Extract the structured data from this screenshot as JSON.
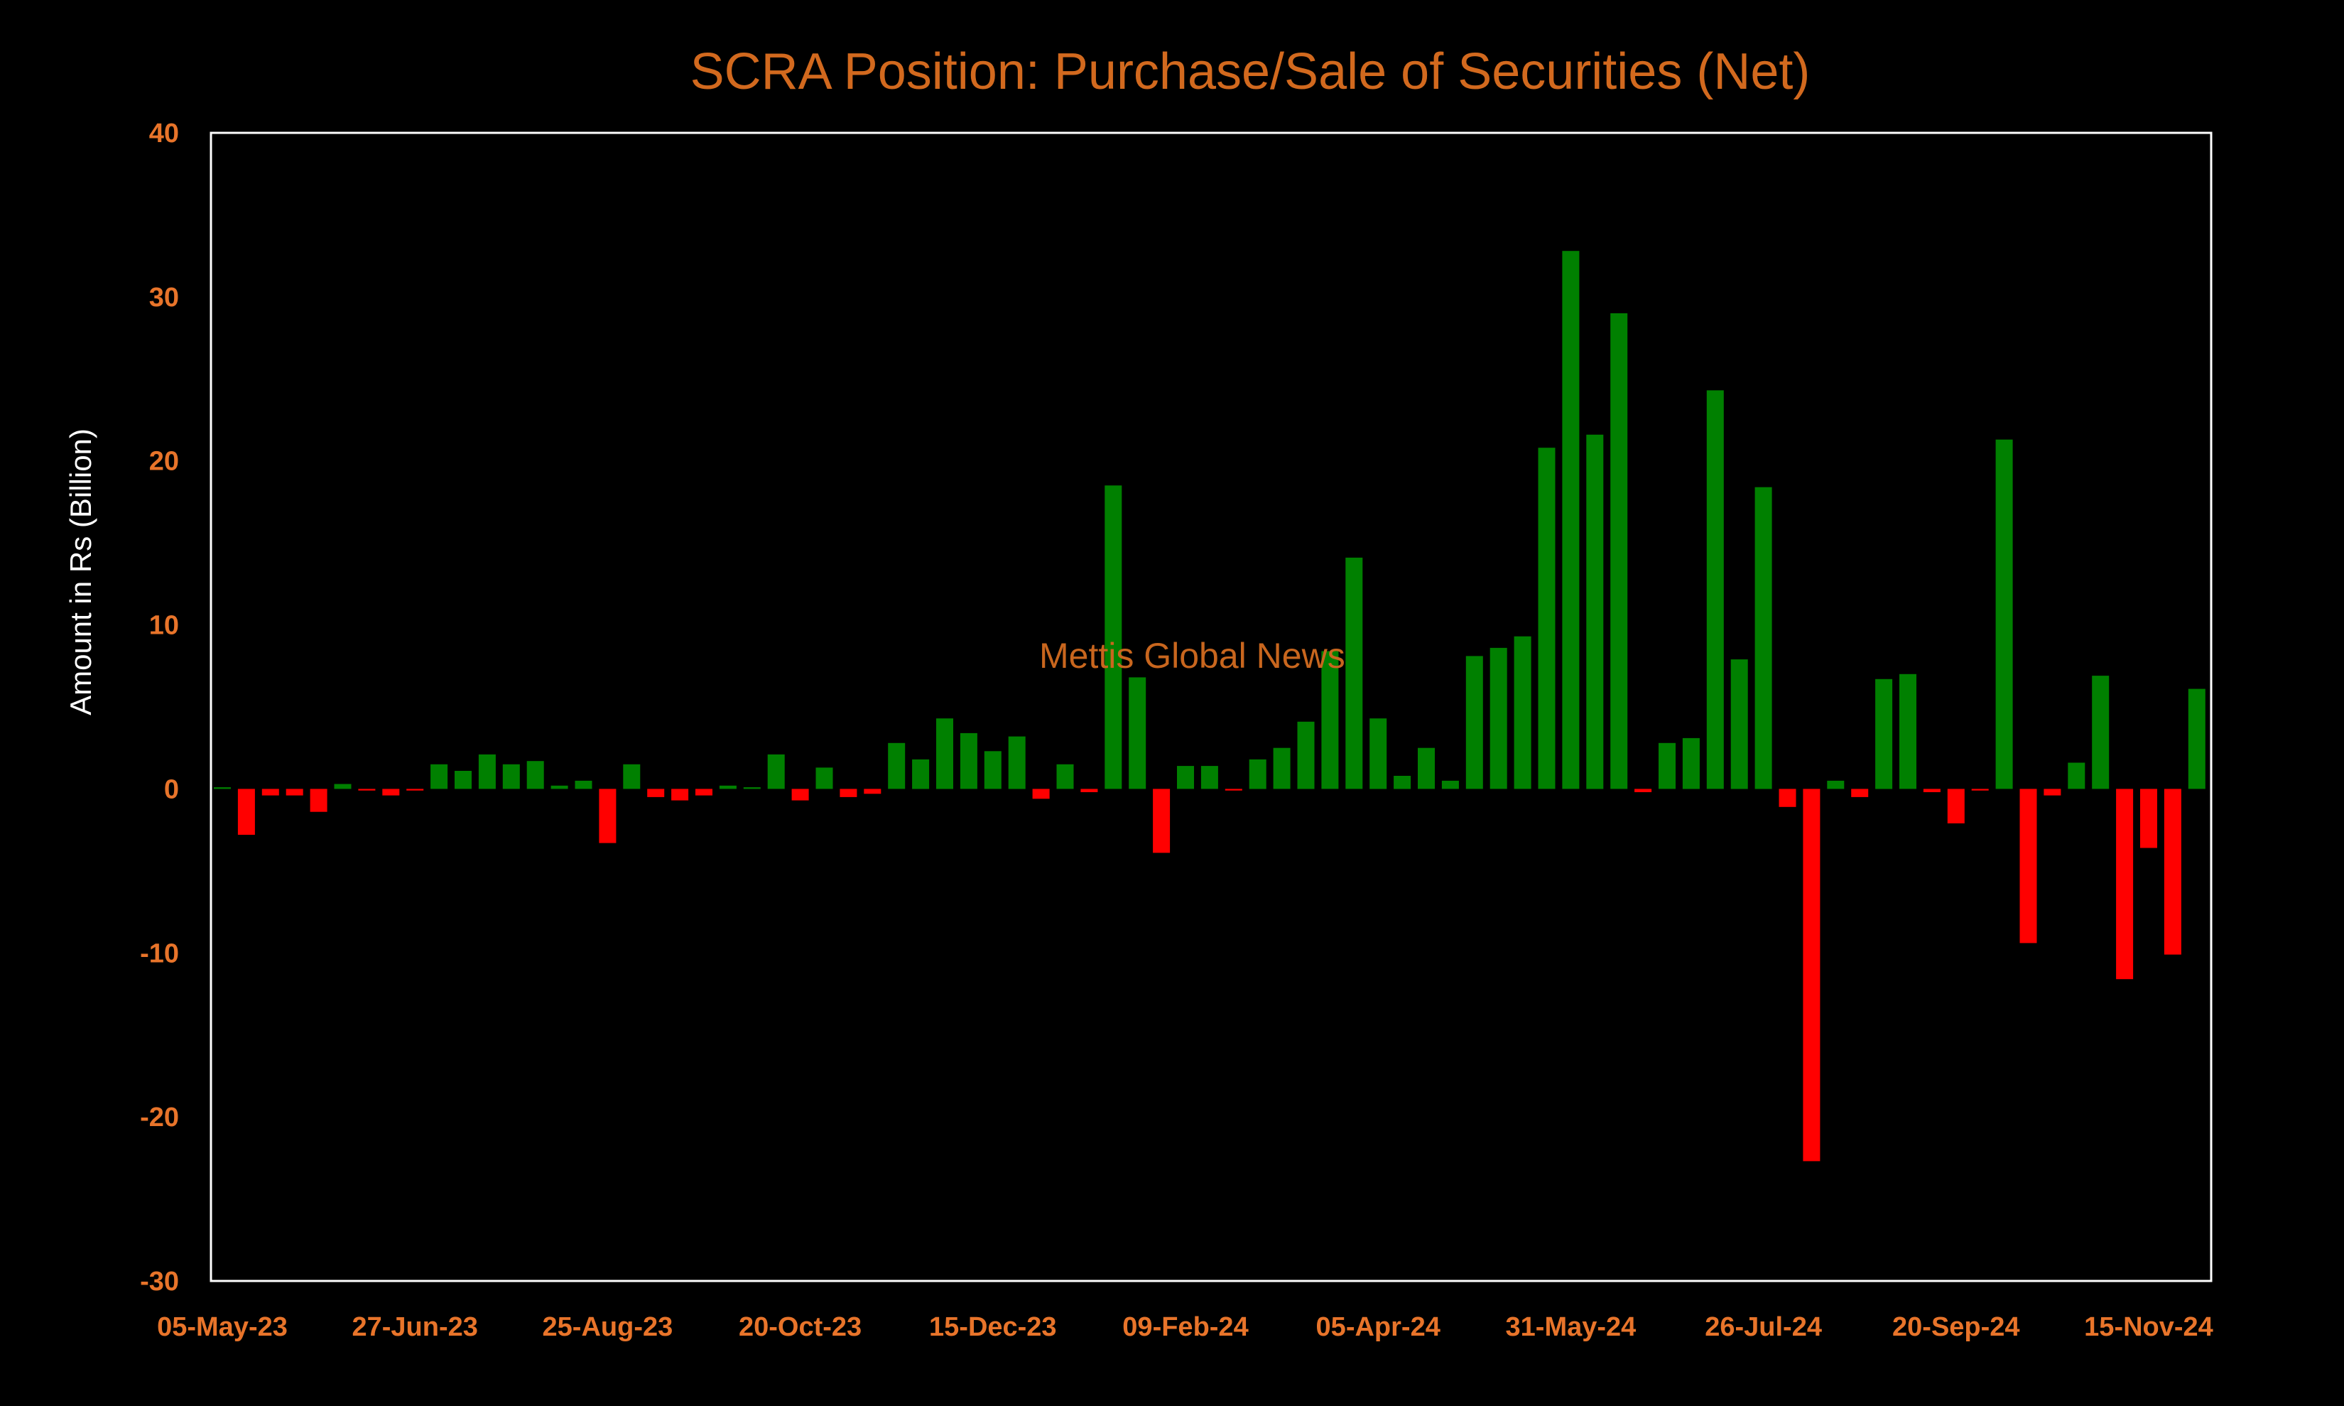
{
  "colors": {
    "background": "#000000",
    "title": "#D2691E",
    "ticks": "#E8742A",
    "axis_label": "#FFFFFF",
    "frame": "#FFFFFF",
    "positive": "#008000",
    "negative": "#FF0000",
    "watermark": "#C8661E"
  },
  "watermark": "Mettis Global News",
  "chart_data": {
    "type": "bar",
    "title": "SCRA Position: Purchase/Sale of Securities (Net)",
    "xlabel": "",
    "ylabel": "Amount in Rs (Billion)",
    "ylim": [
      -30,
      40
    ],
    "yticks": [
      40,
      30,
      20,
      10,
      0,
      -10,
      -20,
      -30
    ],
    "xtick_labels": [
      "05-May-23",
      "27-Jun-23",
      "25-Aug-23",
      "20-Oct-23",
      "15-Dec-23",
      "09-Feb-24",
      "05-Apr-24",
      "31-May-24",
      "26-Jul-24",
      "20-Sep-24",
      "15-Nov-24"
    ],
    "xtick_label_every": 8,
    "grid": false,
    "legend": "none",
    "values": [
      0.1,
      -2.8,
      -0.4,
      -0.4,
      -1.4,
      0.3,
      -0.1,
      -0.4,
      -0.1,
      1.5,
      1.1,
      2.1,
      1.5,
      1.7,
      0.2,
      0.5,
      -3.3,
      1.5,
      -0.5,
      -0.7,
      -0.4,
      0.2,
      0.1,
      2.1,
      -0.7,
      1.3,
      -0.5,
      -0.3,
      2.8,
      1.8,
      4.3,
      3.4,
      2.3,
      3.2,
      -0.6,
      1.5,
      -0.2,
      18.5,
      6.8,
      -3.9,
      1.4,
      1.4,
      -0.1,
      1.8,
      2.5,
      4.1,
      8.4,
      14.1,
      4.3,
      0.8,
      2.5,
      0.5,
      8.1,
      8.6,
      9.3,
      20.8,
      32.8,
      21.6,
      29.0,
      -0.2,
      2.8,
      3.1,
      24.3,
      7.9,
      18.4,
      -1.1,
      -22.7,
      0.5,
      -0.5,
      6.7,
      7.0,
      -0.2,
      -2.1,
      -0.1,
      21.3,
      -9.4,
      -0.4,
      1.6,
      6.9,
      -11.6,
      -3.6,
      -10.1,
      6.1
    ]
  }
}
